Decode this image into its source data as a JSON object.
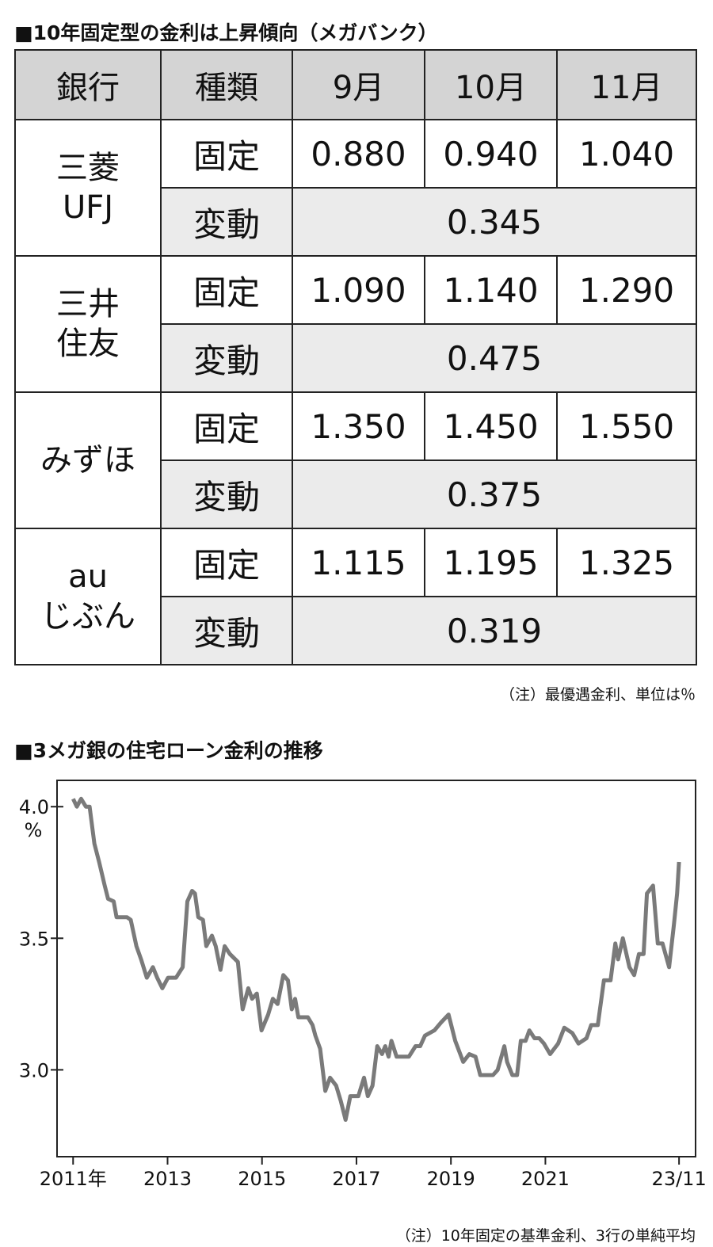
{
  "table": {
    "title": "■10年固定型の金利は上昇傾向（メガバンク）",
    "header": [
      "銀行",
      "種類",
      "9月",
      "10月",
      "11月"
    ],
    "banks": [
      {
        "name": [
          "三菱",
          "UFJ"
        ],
        "rows": [
          {
            "type": "固定",
            "rates": [
              "0.880",
              "0.940",
              "1.040"
            ]
          },
          {
            "type": "変動",
            "rates": [
              "0.345"
            ]
          }
        ]
      },
      {
        "name": [
          "三井",
          "住友"
        ],
        "rows": [
          {
            "type": "固定",
            "rates": [
              "1.090",
              "1.140",
              "1.290"
            ]
          },
          {
            "type": "変動",
            "rates": [
              "0.475"
            ]
          }
        ]
      },
      {
        "name": [
          "みずほ"
        ],
        "rows": [
          {
            "type": "固定",
            "rates": [
              "1.350",
              "1.450",
              "1.550"
            ]
          },
          {
            "type": "変動",
            "rates": [
              "0.375"
            ]
          }
        ]
      },
      {
        "name": [
          "au",
          "じぶん"
        ],
        "rows": [
          {
            "type": "固定",
            "rates": [
              "1.115",
              "1.195",
              "1.325"
            ]
          },
          {
            "type": "変動",
            "rates": [
              "0.319"
            ]
          }
        ]
      }
    ],
    "note": "（注）最優遇金利、単位は％"
  },
  "chart_data": {
    "type": "line",
    "title": "■3メガ銀の住宅ローン金利の推移",
    "y_unit": "%",
    "x": [
      2011.0,
      2011.08,
      2011.17,
      2011.27,
      2011.35,
      2011.45,
      2011.55,
      2011.67,
      2011.74,
      2011.86,
      2011.92,
      2012.14,
      2012.22,
      2012.34,
      2012.44,
      2012.56,
      2012.69,
      2012.78,
      2012.89,
      2013.01,
      2013.18,
      2013.32,
      2013.42,
      2013.52,
      2013.58,
      2013.65,
      2013.75,
      2013.82,
      2013.94,
      2014.02,
      2014.12,
      2014.21,
      2014.32,
      2014.49,
      2014.59,
      2014.71,
      2014.79,
      2014.89,
      2014.99,
      2015.13,
      2015.23,
      2015.33,
      2015.45,
      2015.55,
      2015.63,
      2015.7,
      2015.77,
      2015.97,
      2016.07,
      2016.13,
      2016.23,
      2016.34,
      2016.44,
      2016.57,
      2016.67,
      2016.77,
      2016.87,
      2017.04,
      2017.16,
      2017.24,
      2017.34,
      2017.44,
      2017.54,
      2017.61,
      2017.68,
      2017.74,
      2017.85,
      2018.11,
      2018.25,
      2018.35,
      2018.45,
      2018.65,
      2018.79,
      2018.95,
      2019.09,
      2019.26,
      2019.39,
      2019.52,
      2019.62,
      2019.89,
      2019.99,
      2020.13,
      2020.19,
      2020.3,
      2020.4,
      2020.48,
      2020.58,
      2020.66,
      2020.77,
      2020.87,
      2020.97,
      2021.1,
      2021.27,
      2021.4,
      2021.57,
      2021.7,
      2021.87,
      2021.97,
      2022.11,
      2022.24,
      2022.38,
      2022.48,
      2022.54,
      2022.64,
      2022.78,
      2022.88,
      2022.98,
      2023.08,
      2023.15,
      2023.28,
      2023.38,
      2023.48,
      2023.62,
      2023.72,
      2023.79,
      2023.83
    ],
    "series": [
      {
        "color": "#7a7a7a",
        "values": [
          4.03,
          4.0,
          4.03,
          4.0,
          4.0,
          3.86,
          3.79,
          3.7,
          3.65,
          3.64,
          3.58,
          3.58,
          3.57,
          3.47,
          3.42,
          3.35,
          3.39,
          3.35,
          3.31,
          3.35,
          3.35,
          3.39,
          3.64,
          3.68,
          3.67,
          3.58,
          3.57,
          3.47,
          3.51,
          3.47,
          3.38,
          3.47,
          3.44,
          3.41,
          3.23,
          3.31,
          3.27,
          3.29,
          3.15,
          3.21,
          3.27,
          3.25,
          3.36,
          3.34,
          3.23,
          3.27,
          3.2,
          3.2,
          3.17,
          3.13,
          3.08,
          2.92,
          2.97,
          2.94,
          2.88,
          2.81,
          2.9,
          2.9,
          2.97,
          2.9,
          2.94,
          3.09,
          3.06,
          3.09,
          3.05,
          3.11,
          3.05,
          3.05,
          3.09,
          3.09,
          3.13,
          3.15,
          3.18,
          3.21,
          3.11,
          3.03,
          3.06,
          3.05,
          2.98,
          2.98,
          3.0,
          3.09,
          3.03,
          2.98,
          2.98,
          3.11,
          3.11,
          3.15,
          3.12,
          3.12,
          3.1,
          3.06,
          3.1,
          3.16,
          3.14,
          3.1,
          3.12,
          3.17,
          3.17,
          3.34,
          3.34,
          3.48,
          3.42,
          3.5,
          3.39,
          3.36,
          3.44,
          3.44,
          3.67,
          3.7,
          3.48,
          3.48,
          3.39,
          3.55,
          3.67,
          3.79
        ]
      }
    ],
    "xlim": [
      2010.66,
      2024.18
    ],
    "ylim": [
      2.67,
      4.1
    ],
    "xticks": [
      {
        "value": 2011,
        "label": "2011年"
      },
      2013,
      2015,
      2017,
      2019,
      2021,
      {
        "value": 2023.83,
        "label": "23/11"
      }
    ],
    "yticks": [
      {
        "value": 3,
        "label": "3.0"
      },
      3.5,
      {
        "value": 4,
        "label": "4.0"
      }
    ],
    "note": "（注）10年固定の基準金利、3行の単純平均"
  }
}
